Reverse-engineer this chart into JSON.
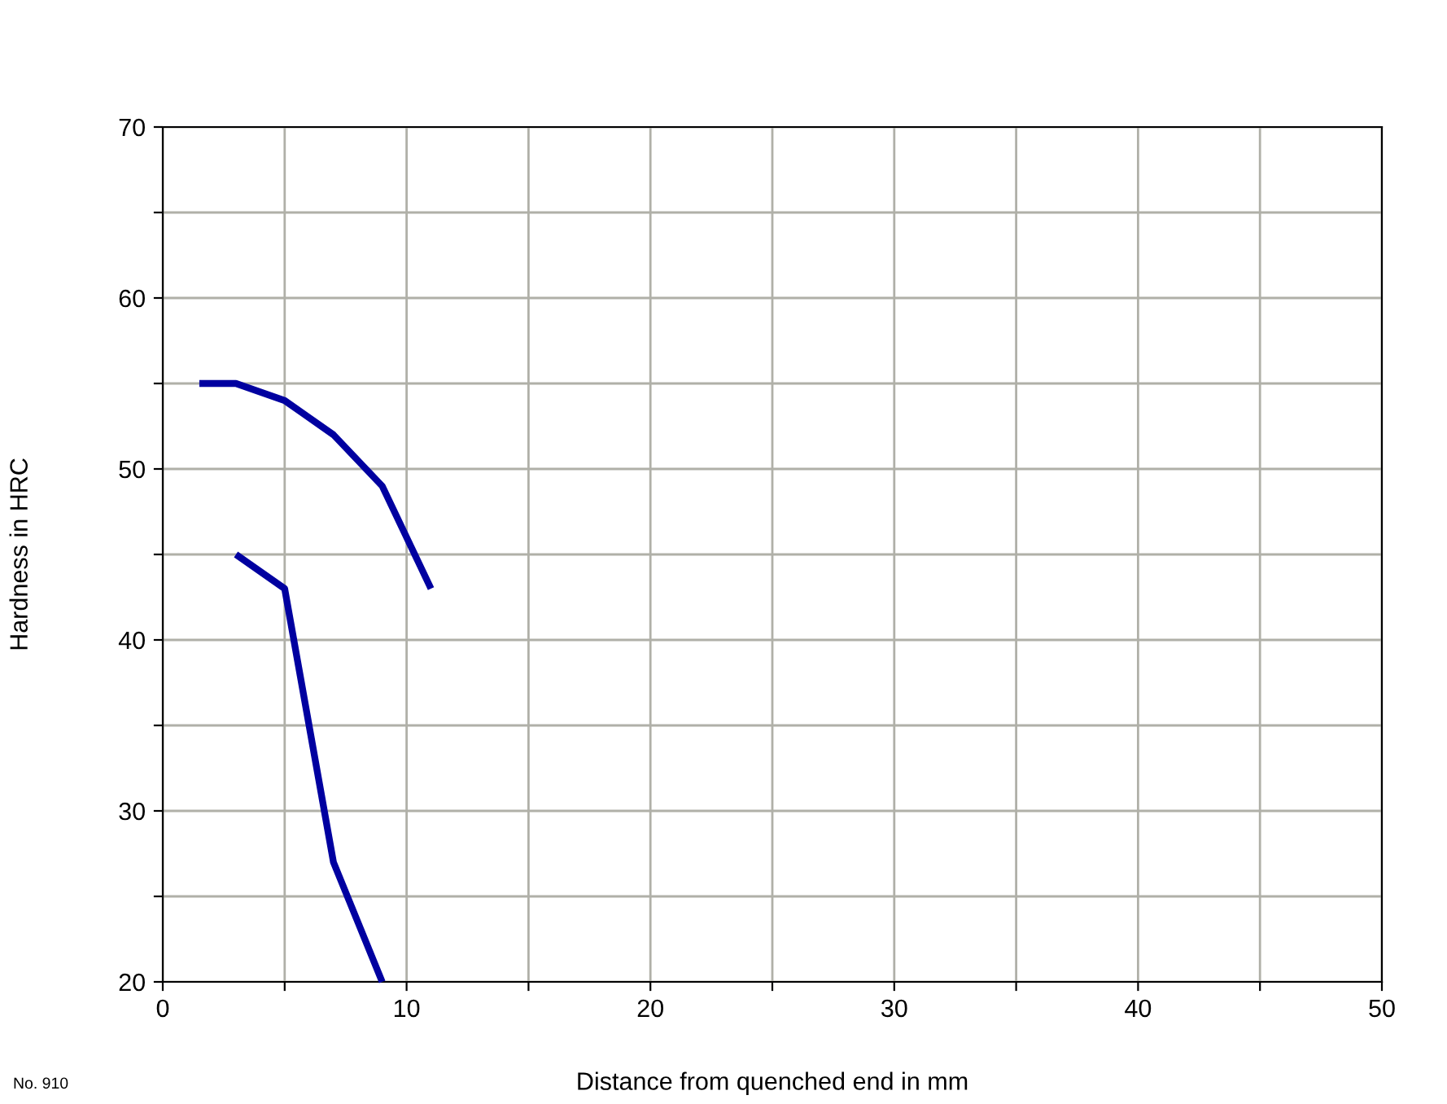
{
  "chart_data": {
    "type": "line",
    "xlabel": "Distance from quenched end in mm",
    "ylabel": "Hardness in HRC",
    "annotations": [
      "No. 910"
    ],
    "series": [
      {
        "color": "#0000a0",
        "x": [
          1.5,
          3,
          5,
          7,
          9,
          11
        ],
        "values": [
          55,
          55,
          54,
          52,
          49,
          43
        ]
      },
      {
        "color": "#0000a0",
        "x": [
          3,
          5,
          7,
          9
        ],
        "values": [
          45,
          43,
          27,
          20
        ]
      }
    ],
    "xlim": [
      0,
      50
    ],
    "ylim": [
      20,
      70
    ],
    "xticks": [
      0,
      {
        "value": 5,
        "label": null
      },
      10,
      {
        "value": 15,
        "label": null
      },
      20,
      {
        "value": 25,
        "label": null
      },
      30,
      {
        "value": 35,
        "label": null
      },
      40,
      {
        "value": 45,
        "label": null
      },
      50
    ],
    "yticks": [
      20,
      {
        "value": 25,
        "label": null
      },
      30,
      {
        "value": 35,
        "label": null
      },
      40,
      {
        "value": 45,
        "label": null
      },
      50,
      {
        "value": 55,
        "label": null
      },
      60,
      {
        "value": 65,
        "label": null
      },
      70
    ],
    "grid": true,
    "marker": "none",
    "line_style": "solid"
  }
}
